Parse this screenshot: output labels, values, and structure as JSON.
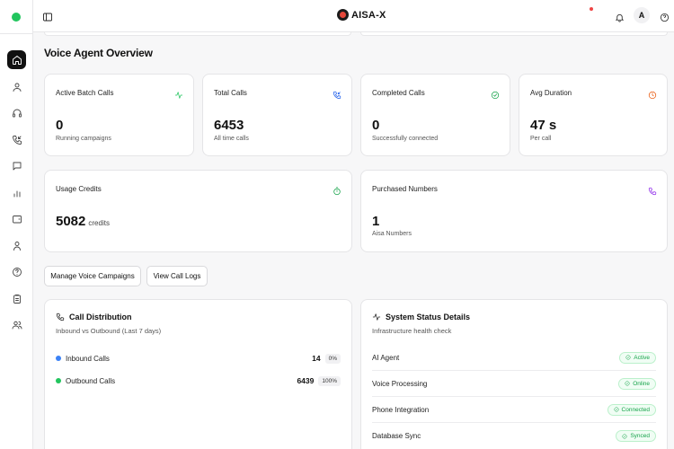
{
  "brand": {
    "name": "AISA-X"
  },
  "header": {
    "avatar_initial": "A"
  },
  "page": {
    "title": "Voice Agent Overview"
  },
  "stats": [
    {
      "label": "Active Batch Calls",
      "value": "0",
      "sub": "Running campaigns",
      "icon": "activity-icon",
      "color": "#22c55e"
    },
    {
      "label": "Total Calls",
      "value": "6453",
      "sub": "All time calls",
      "icon": "phone-incoming-icon",
      "color": "#2563eb"
    },
    {
      "label": "Completed Calls",
      "value": "0",
      "sub": "Successfully connected",
      "icon": "check-circle-icon",
      "color": "#16a34a"
    },
    {
      "label": "Avg Duration",
      "value": "47 s",
      "sub": "Per call",
      "icon": "clock-icon",
      "color": "#ea580c"
    }
  ],
  "credits": {
    "label": "Usage Credits",
    "value": "5082",
    "unit": "credits",
    "icon": "timer-icon",
    "color": "#16a34a"
  },
  "numbers": {
    "label": "Purchased Numbers",
    "value": "1",
    "sub": "Aisa Numbers",
    "icon": "phone-icon",
    "color": "#9333ea"
  },
  "actions": {
    "manage_label": "Manage Voice Campaigns",
    "logs_label": "View Call Logs"
  },
  "distribution": {
    "title": "Call Distribution",
    "subtitle": "Inbound vs Outbound (Last 7 days)",
    "rows": [
      {
        "label": "Inbound Calls",
        "count": "14",
        "pct": "0%",
        "color": "#3b82f6"
      },
      {
        "label": "Outbound Calls",
        "count": "6439",
        "pct": "100%",
        "color": "#22c55e"
      }
    ]
  },
  "system": {
    "title": "System Status Details",
    "subtitle": "Infrastructure health check",
    "rows": [
      {
        "label": "AI Agent",
        "status": "Active"
      },
      {
        "label": "Voice Processing",
        "status": "Online"
      },
      {
        "label": "Phone Integration",
        "status": "Connected"
      },
      {
        "label": "Database Sync",
        "status": "Synced"
      }
    ]
  },
  "colors": {
    "accent": "#22c55e",
    "status_green": "#16a34a"
  }
}
